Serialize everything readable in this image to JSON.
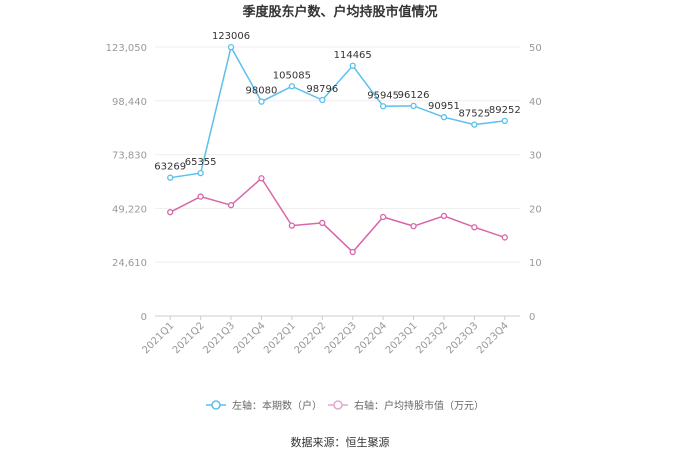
{
  "chart_data": {
    "type": "line",
    "title": "季度股东户数、户均持股市值情况",
    "categories": [
      "2021Q1",
      "2021Q2",
      "2021Q3",
      "2021Q4",
      "2022Q1",
      "2022Q2",
      "2022Q3",
      "2022Q4",
      "2023Q1",
      "2023Q2",
      "2023Q3",
      "2023Q4"
    ],
    "left_axis": {
      "min": 0,
      "max": 123050,
      "ticks": [
        "0",
        "24,610",
        "49,220",
        "73,830",
        "98,440",
        "123,050"
      ]
    },
    "right_axis": {
      "min": 0,
      "max": 50,
      "ticks": [
        "0",
        "10",
        "20",
        "30",
        "40",
        "50"
      ]
    },
    "series": [
      {
        "name": "左轴：本期数（户）",
        "axis": "left",
        "color": "#5bc0eb",
        "show_labels": true,
        "values": [
          63269,
          65355,
          123006,
          98080,
          105085,
          98796,
          114465,
          95945,
          96126,
          90951,
          87525,
          89252
        ]
      },
      {
        "name": "右轴：户均持股市值（万元）",
        "axis": "right",
        "color": "#d966a8",
        "show_labels": false,
        "values": [
          19.3,
          22.2,
          20.6,
          25.6,
          16.8,
          17.3,
          11.9,
          18.4,
          16.7,
          18.6,
          16.5,
          14.6
        ]
      }
    ],
    "grid": true,
    "legend_position": "bottom"
  },
  "source_text": "数据来源：恒生聚源"
}
